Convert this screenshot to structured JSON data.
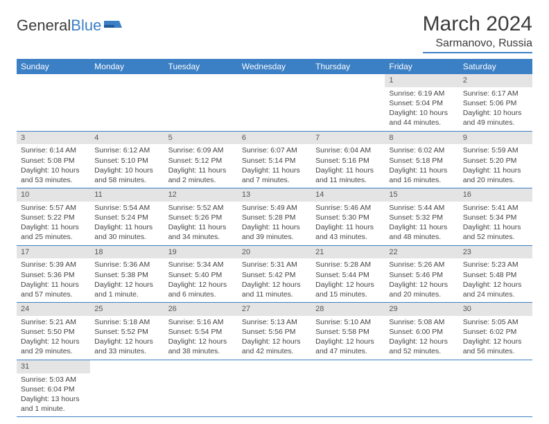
{
  "logo": {
    "text_a": "General",
    "text_b": "Blue"
  },
  "header": {
    "month_title": "March 2024",
    "location": "Sarmanovo, Russia"
  },
  "colors": {
    "header_bg": "#3b7fc4",
    "header_fg": "#ffffff",
    "daynum_bg": "#e4e4e4",
    "text": "#444444",
    "rule": "#3b7fc4"
  },
  "day_headers": [
    "Sunday",
    "Monday",
    "Tuesday",
    "Wednesday",
    "Thursday",
    "Friday",
    "Saturday"
  ],
  "weeks": [
    [
      {
        "n": "",
        "lines": []
      },
      {
        "n": "",
        "lines": []
      },
      {
        "n": "",
        "lines": []
      },
      {
        "n": "",
        "lines": []
      },
      {
        "n": "",
        "lines": []
      },
      {
        "n": "1",
        "lines": [
          "Sunrise: 6:19 AM",
          "Sunset: 5:04 PM",
          "Daylight: 10 hours",
          "and 44 minutes."
        ]
      },
      {
        "n": "2",
        "lines": [
          "Sunrise: 6:17 AM",
          "Sunset: 5:06 PM",
          "Daylight: 10 hours",
          "and 49 minutes."
        ]
      }
    ],
    [
      {
        "n": "3",
        "lines": [
          "Sunrise: 6:14 AM",
          "Sunset: 5:08 PM",
          "Daylight: 10 hours",
          "and 53 minutes."
        ]
      },
      {
        "n": "4",
        "lines": [
          "Sunrise: 6:12 AM",
          "Sunset: 5:10 PM",
          "Daylight: 10 hours",
          "and 58 minutes."
        ]
      },
      {
        "n": "5",
        "lines": [
          "Sunrise: 6:09 AM",
          "Sunset: 5:12 PM",
          "Daylight: 11 hours",
          "and 2 minutes."
        ]
      },
      {
        "n": "6",
        "lines": [
          "Sunrise: 6:07 AM",
          "Sunset: 5:14 PM",
          "Daylight: 11 hours",
          "and 7 minutes."
        ]
      },
      {
        "n": "7",
        "lines": [
          "Sunrise: 6:04 AM",
          "Sunset: 5:16 PM",
          "Daylight: 11 hours",
          "and 11 minutes."
        ]
      },
      {
        "n": "8",
        "lines": [
          "Sunrise: 6:02 AM",
          "Sunset: 5:18 PM",
          "Daylight: 11 hours",
          "and 16 minutes."
        ]
      },
      {
        "n": "9",
        "lines": [
          "Sunrise: 5:59 AM",
          "Sunset: 5:20 PM",
          "Daylight: 11 hours",
          "and 20 minutes."
        ]
      }
    ],
    [
      {
        "n": "10",
        "lines": [
          "Sunrise: 5:57 AM",
          "Sunset: 5:22 PM",
          "Daylight: 11 hours",
          "and 25 minutes."
        ]
      },
      {
        "n": "11",
        "lines": [
          "Sunrise: 5:54 AM",
          "Sunset: 5:24 PM",
          "Daylight: 11 hours",
          "and 30 minutes."
        ]
      },
      {
        "n": "12",
        "lines": [
          "Sunrise: 5:52 AM",
          "Sunset: 5:26 PM",
          "Daylight: 11 hours",
          "and 34 minutes."
        ]
      },
      {
        "n": "13",
        "lines": [
          "Sunrise: 5:49 AM",
          "Sunset: 5:28 PM",
          "Daylight: 11 hours",
          "and 39 minutes."
        ]
      },
      {
        "n": "14",
        "lines": [
          "Sunrise: 5:46 AM",
          "Sunset: 5:30 PM",
          "Daylight: 11 hours",
          "and 43 minutes."
        ]
      },
      {
        "n": "15",
        "lines": [
          "Sunrise: 5:44 AM",
          "Sunset: 5:32 PM",
          "Daylight: 11 hours",
          "and 48 minutes."
        ]
      },
      {
        "n": "16",
        "lines": [
          "Sunrise: 5:41 AM",
          "Sunset: 5:34 PM",
          "Daylight: 11 hours",
          "and 52 minutes."
        ]
      }
    ],
    [
      {
        "n": "17",
        "lines": [
          "Sunrise: 5:39 AM",
          "Sunset: 5:36 PM",
          "Daylight: 11 hours",
          "and 57 minutes."
        ]
      },
      {
        "n": "18",
        "lines": [
          "Sunrise: 5:36 AM",
          "Sunset: 5:38 PM",
          "Daylight: 12 hours",
          "and 1 minute."
        ]
      },
      {
        "n": "19",
        "lines": [
          "Sunrise: 5:34 AM",
          "Sunset: 5:40 PM",
          "Daylight: 12 hours",
          "and 6 minutes."
        ]
      },
      {
        "n": "20",
        "lines": [
          "Sunrise: 5:31 AM",
          "Sunset: 5:42 PM",
          "Daylight: 12 hours",
          "and 11 minutes."
        ]
      },
      {
        "n": "21",
        "lines": [
          "Sunrise: 5:28 AM",
          "Sunset: 5:44 PM",
          "Daylight: 12 hours",
          "and 15 minutes."
        ]
      },
      {
        "n": "22",
        "lines": [
          "Sunrise: 5:26 AM",
          "Sunset: 5:46 PM",
          "Daylight: 12 hours",
          "and 20 minutes."
        ]
      },
      {
        "n": "23",
        "lines": [
          "Sunrise: 5:23 AM",
          "Sunset: 5:48 PM",
          "Daylight: 12 hours",
          "and 24 minutes."
        ]
      }
    ],
    [
      {
        "n": "24",
        "lines": [
          "Sunrise: 5:21 AM",
          "Sunset: 5:50 PM",
          "Daylight: 12 hours",
          "and 29 minutes."
        ]
      },
      {
        "n": "25",
        "lines": [
          "Sunrise: 5:18 AM",
          "Sunset: 5:52 PM",
          "Daylight: 12 hours",
          "and 33 minutes."
        ]
      },
      {
        "n": "26",
        "lines": [
          "Sunrise: 5:16 AM",
          "Sunset: 5:54 PM",
          "Daylight: 12 hours",
          "and 38 minutes."
        ]
      },
      {
        "n": "27",
        "lines": [
          "Sunrise: 5:13 AM",
          "Sunset: 5:56 PM",
          "Daylight: 12 hours",
          "and 42 minutes."
        ]
      },
      {
        "n": "28",
        "lines": [
          "Sunrise: 5:10 AM",
          "Sunset: 5:58 PM",
          "Daylight: 12 hours",
          "and 47 minutes."
        ]
      },
      {
        "n": "29",
        "lines": [
          "Sunrise: 5:08 AM",
          "Sunset: 6:00 PM",
          "Daylight: 12 hours",
          "and 52 minutes."
        ]
      },
      {
        "n": "30",
        "lines": [
          "Sunrise: 5:05 AM",
          "Sunset: 6:02 PM",
          "Daylight: 12 hours",
          "and 56 minutes."
        ]
      }
    ],
    [
      {
        "n": "31",
        "lines": [
          "Sunrise: 5:03 AM",
          "Sunset: 6:04 PM",
          "Daylight: 13 hours",
          "and 1 minute."
        ]
      },
      {
        "n": "",
        "lines": []
      },
      {
        "n": "",
        "lines": []
      },
      {
        "n": "",
        "lines": []
      },
      {
        "n": "",
        "lines": []
      },
      {
        "n": "",
        "lines": []
      },
      {
        "n": "",
        "lines": []
      }
    ]
  ]
}
